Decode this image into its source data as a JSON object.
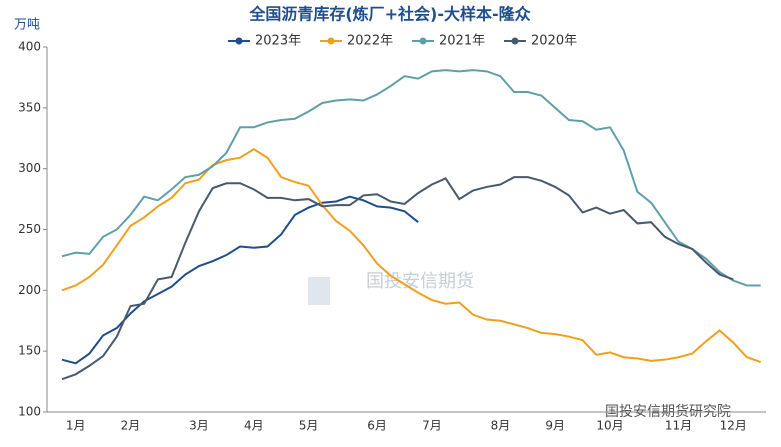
{
  "chart_data": {
    "type": "line",
    "title": "全国沥青库存(炼厂+社会)-大样本-隆众",
    "y_label": "万吨",
    "watermark": "国投安信期货",
    "source": "国投安信期货研究院",
    "categories": [
      null,
      "1月",
      null,
      null,
      null,
      "2月",
      null,
      null,
      null,
      null,
      "3月",
      null,
      null,
      null,
      "4月",
      null,
      null,
      null,
      "5月",
      null,
      null,
      null,
      null,
      "6月",
      null,
      null,
      null,
      "7月",
      null,
      null,
      null,
      null,
      "8月",
      null,
      null,
      null,
      "9月",
      null,
      null,
      null,
      "10月",
      null,
      null,
      null,
      null,
      "11月",
      null,
      null,
      null,
      "12月",
      null,
      null
    ],
    "series": [
      {
        "name": "2023年",
        "color": "#1f4e8c",
        "values": [
          143,
          140,
          148,
          163,
          169,
          181,
          191,
          197,
          203,
          213,
          220,
          224,
          229,
          236,
          235,
          236,
          246,
          262,
          268,
          272,
          273,
          277,
          274,
          269,
          268,
          265,
          256,
          null,
          null,
          null,
          null,
          null,
          null,
          null,
          null,
          null,
          null,
          null,
          null,
          null,
          null,
          null,
          null,
          null,
          null,
          null,
          null,
          null,
          null,
          null,
          null,
          null
        ]
      },
      {
        "name": "2022年",
        "color": "#f0a01e",
        "values": [
          200,
          204,
          211,
          221,
          237,
          253,
          260,
          269,
          276,
          288,
          291,
          303,
          307,
          309,
          316,
          309,
          293,
          289,
          286,
          270,
          257,
          249,
          237,
          222,
          212,
          205,
          198,
          192,
          189,
          190,
          180,
          176,
          175,
          172,
          169,
          165,
          164,
          162,
          159,
          147,
          149,
          145,
          144,
          142,
          143,
          145,
          148,
          158,
          167,
          157,
          145,
          141
        ]
      },
      {
        "name": "2021年",
        "color": "#5fa0a8",
        "values": [
          228,
          231,
          230,
          244,
          250,
          262,
          277,
          274,
          283,
          293,
          295,
          302,
          313,
          334,
          334,
          338,
          340,
          341,
          347,
          354,
          356,
          357,
          356,
          361,
          368,
          376,
          374,
          380,
          381,
          380,
          381,
          380,
          376,
          363,
          363,
          360,
          350,
          340,
          339,
          332,
          334,
          315,
          281,
          272,
          256,
          240,
          234,
          226,
          215,
          208,
          204,
          204
        ]
      },
      {
        "name": "2020年",
        "color": "#4a5a6a",
        "values": [
          127,
          131,
          138,
          146,
          162,
          187,
          189,
          209,
          211,
          239,
          265,
          284,
          288,
          288,
          283,
          276,
          276,
          274,
          275,
          269,
          270,
          270,
          278,
          279,
          273,
          271,
          280,
          287,
          292,
          275,
          282,
          285,
          287,
          293,
          293,
          290,
          285,
          278,
          264,
          268,
          263,
          266,
          255,
          256,
          244,
          238,
          234,
          223,
          213,
          209,
          null,
          null
        ]
      }
    ],
    "ylim": [
      100,
      400
    ],
    "yticks": [
      100,
      150,
      200,
      250,
      300,
      350,
      400
    ],
    "grid": false
  }
}
